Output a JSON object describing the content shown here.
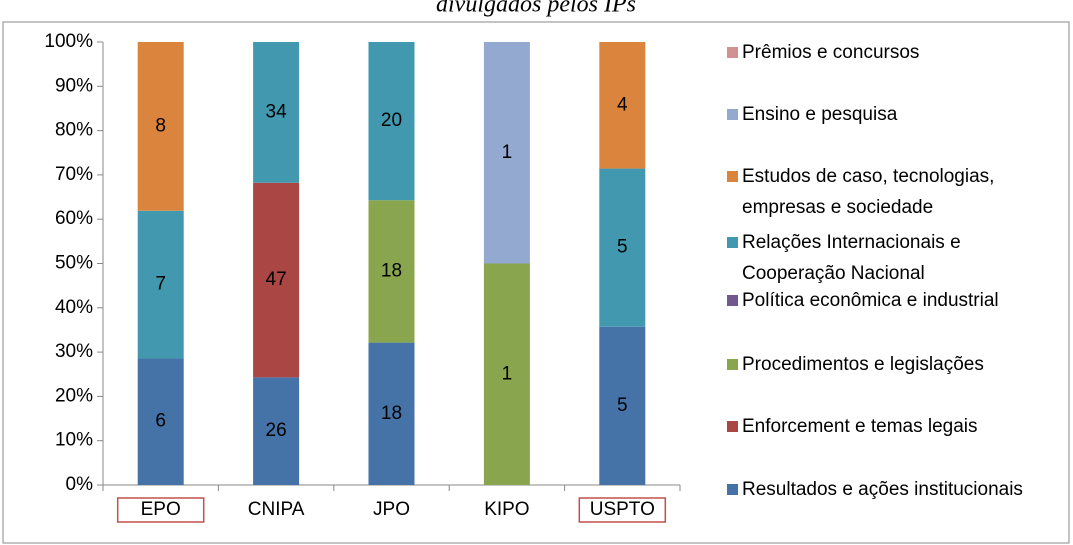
{
  "chart_data": {
    "type": "bar",
    "stacking": "percent",
    "title": "divulgados pelos IPs",
    "categories": [
      "EPO",
      "CNIPA",
      "JPO",
      "KIPO",
      "USPTO"
    ],
    "highlighted_categories": [
      "EPO",
      "USPTO"
    ],
    "series": [
      {
        "name": "Resultados e ações institucionais",
        "color": "#4573a7",
        "values": [
          6,
          26,
          18,
          null,
          5
        ]
      },
      {
        "name": "Enforcement e temas legais",
        "color": "#aa4643",
        "values": [
          null,
          47,
          null,
          null,
          null
        ]
      },
      {
        "name": "Procedimentos e legislações",
        "color": "#89a54e",
        "values": [
          null,
          null,
          18,
          1,
          null
        ]
      },
      {
        "name": "Política econômica e industrial",
        "color": "#71588f",
        "values": [
          null,
          null,
          null,
          null,
          null
        ]
      },
      {
        "name": "Relações Internacionais e Cooperação Nacional",
        "color": "#4198af",
        "values": [
          7,
          34,
          20,
          null,
          5
        ]
      },
      {
        "name": "Estudos de caso, tecnologias, empresas e sociedade",
        "color": "#db843d",
        "values": [
          8,
          null,
          null,
          null,
          4
        ]
      },
      {
        "name": "Ensino e pesquisa",
        "color": "#93a9cf",
        "values": [
          null,
          null,
          null,
          1,
          null
        ]
      },
      {
        "name": "Prêmios e concursos",
        "color": "#d19392",
        "values": [
          null,
          null,
          null,
          null,
          null
        ]
      }
    ],
    "ylim": [
      0,
      100
    ],
    "yticks": [
      {
        "value": 0,
        "label": "0%"
      },
      {
        "value": 10,
        "label": "10%"
      },
      {
        "value": 20,
        "label": "20%"
      },
      {
        "value": 30,
        "label": "30%"
      },
      {
        "value": 40,
        "label": "40%"
      },
      {
        "value": 50,
        "label": "50%"
      },
      {
        "value": 60,
        "label": "60%"
      },
      {
        "value": 70,
        "label": "70%"
      },
      {
        "value": 80,
        "label": "80%"
      },
      {
        "value": 90,
        "label": "90%"
      },
      {
        "value": 100,
        "label": "100%"
      }
    ],
    "legend": "right"
  }
}
